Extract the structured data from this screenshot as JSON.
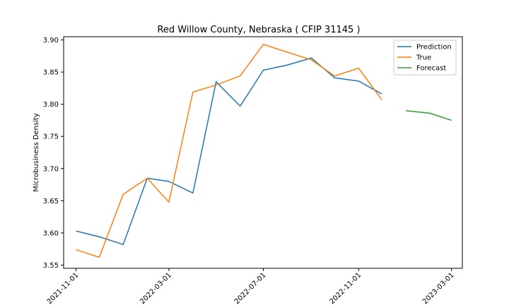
{
  "chart_data": {
    "type": "line",
    "title": "Red Willow County, Nebraska ( CFIP 31145 )",
    "xlabel": "",
    "ylabel": "Microbusiness Density",
    "ylim": [
      3.545,
      3.905
    ],
    "yticks": [
      "3.55",
      "3.60",
      "3.65",
      "3.70",
      "3.75",
      "3.80",
      "3.85",
      "3.90"
    ],
    "xticks": [
      "2021-11-01",
      "2022-03-01",
      "2022-07-01",
      "2022-11-01",
      "2023-03-01"
    ],
    "legend_position": "top-right",
    "grid": false,
    "series": [
      {
        "name": "Prediction",
        "color": "#1f77b4",
        "x": [
          "2021-11-01",
          "2021-12-01",
          "2022-01-01",
          "2022-02-01",
          "2022-03-01",
          "2022-04-01",
          "2022-05-01",
          "2022-06-01",
          "2022-07-01",
          "2022-08-01",
          "2022-09-01",
          "2022-10-01",
          "2022-11-01",
          "2022-12-01"
        ],
        "values": [
          3.603,
          3.594,
          3.582,
          3.685,
          3.68,
          3.662,
          3.835,
          3.797,
          3.853,
          3.861,
          3.872,
          3.841,
          3.836,
          3.816
        ]
      },
      {
        "name": "True",
        "color": "#ff7f0e",
        "x": [
          "2021-11-01",
          "2021-12-01",
          "2022-01-01",
          "2022-02-01",
          "2022-03-01",
          "2022-04-01",
          "2022-05-01",
          "2022-06-01",
          "2022-07-01",
          "2022-08-01",
          "2022-09-01",
          "2022-10-01",
          "2022-11-01",
          "2022-12-01"
        ],
        "values": [
          3.574,
          3.562,
          3.66,
          3.685,
          3.648,
          3.819,
          3.83,
          3.844,
          3.893,
          3.881,
          3.869,
          3.844,
          3.856,
          3.807
        ]
      },
      {
        "name": "Forecast",
        "color": "#2ca02c",
        "x": [
          "2023-01-01",
          "2023-02-01",
          "2023-03-01"
        ],
        "values": [
          3.79,
          3.786,
          3.775
        ]
      }
    ]
  }
}
